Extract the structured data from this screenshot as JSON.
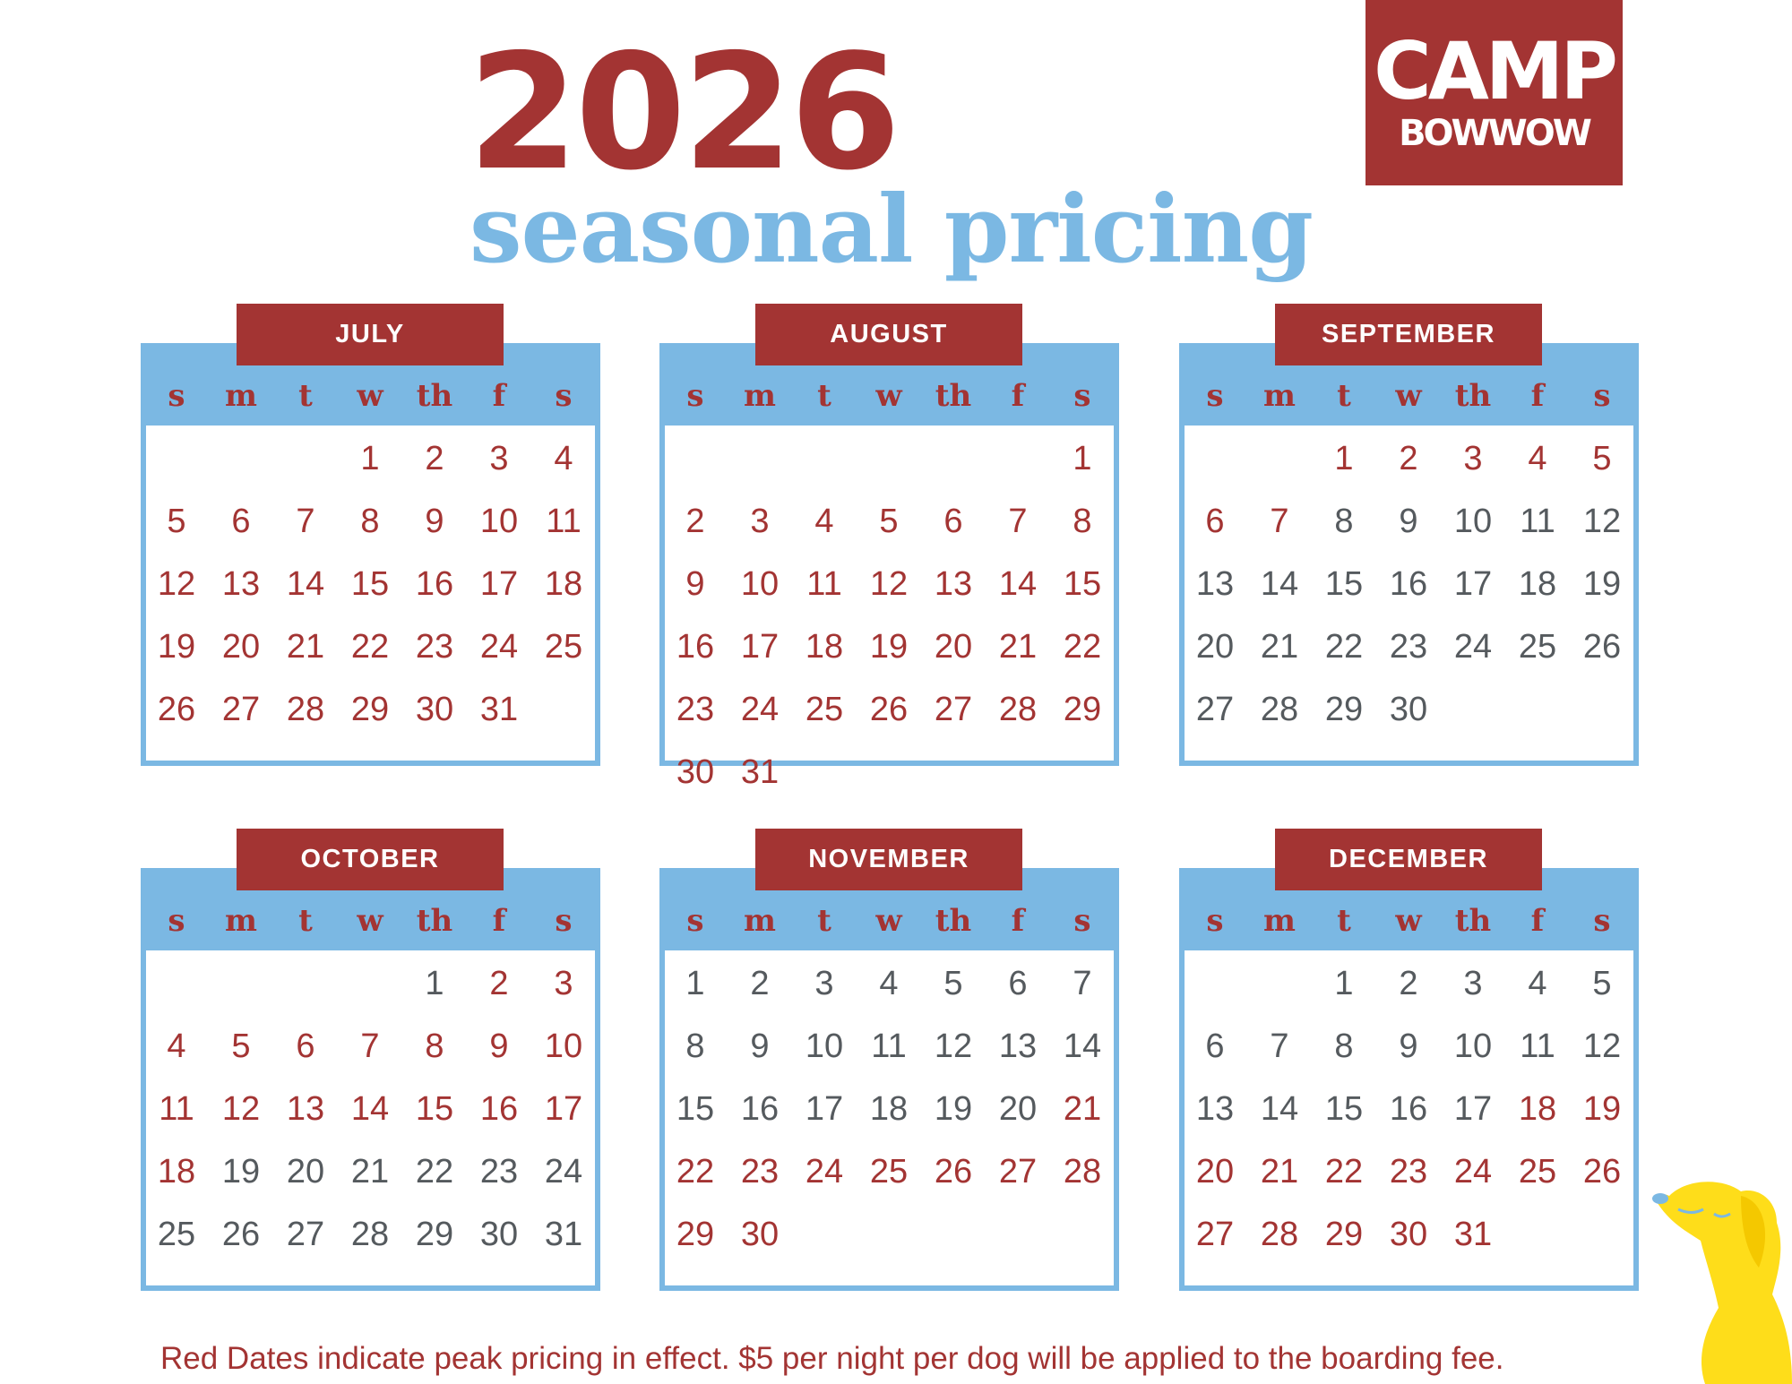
{
  "header": {
    "year": "2026",
    "subtitle": "seasonal pricing"
  },
  "logo": {
    "line1": "CAMP",
    "line2": "BOWWOW",
    "registered": "®"
  },
  "weekdays": [
    "s",
    "m",
    "t",
    "w",
    "th",
    "f",
    "s"
  ],
  "months": [
    {
      "name": "JULY",
      "first_weekday_index": 3,
      "days": 31,
      "peak_ranges": [
        [
          1,
          31
        ]
      ]
    },
    {
      "name": "AUGUST",
      "first_weekday_index": 6,
      "days": 31,
      "peak_ranges": [
        [
          1,
          31
        ]
      ]
    },
    {
      "name": "SEPTEMBER",
      "first_weekday_index": 2,
      "days": 30,
      "peak_ranges": [
        [
          1,
          7
        ]
      ]
    },
    {
      "name": "OCTOBER",
      "first_weekday_index": 4,
      "days": 31,
      "peak_ranges": [
        [
          2,
          18
        ]
      ]
    },
    {
      "name": "NOVEMBER",
      "first_weekday_index": 0,
      "days": 30,
      "peak_ranges": [
        [
          21,
          30
        ]
      ]
    },
    {
      "name": "DECEMBER",
      "first_weekday_index": 2,
      "days": 31,
      "peak_ranges": [
        [
          18,
          31
        ]
      ]
    }
  ],
  "footer": "Red Dates indicate peak pricing in effect. $5 per night per dog will be applied to the boarding fee.",
  "colors": {
    "peak": "#a33433",
    "regular": "#555a5e",
    "header_blue": "#7bb8e3",
    "dog_yellow": "#fedd1a"
  }
}
